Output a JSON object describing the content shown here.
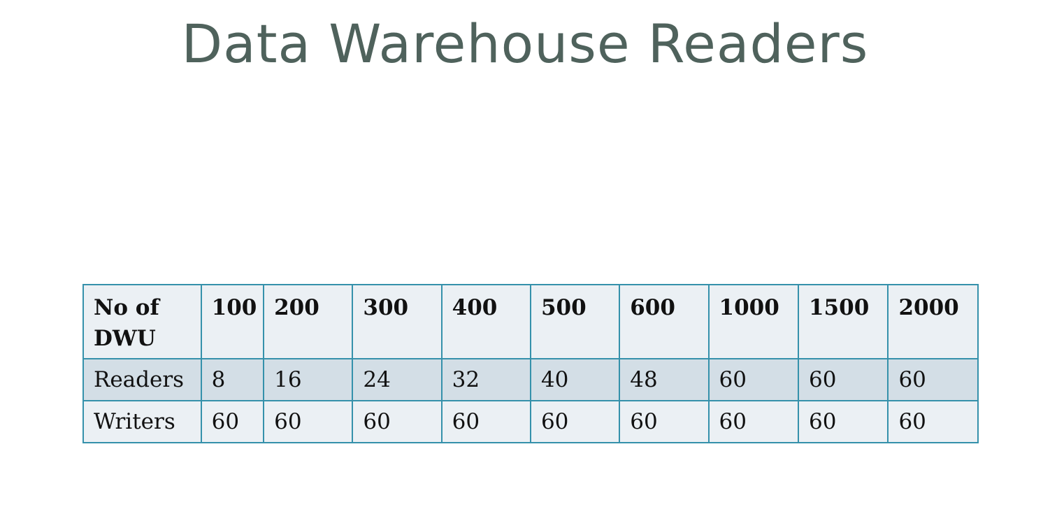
{
  "slide": {
    "title": "Data Warehouse Readers"
  },
  "table": {
    "header": [
      "No of DWU",
      "100",
      "200",
      "300",
      "400",
      "500",
      "600",
      "1000",
      "1500",
      "2000"
    ],
    "rows": [
      {
        "label": "Readers",
        "values": [
          "8",
          "16",
          "24",
          "32",
          "40",
          "48",
          "60",
          "60",
          "60"
        ]
      },
      {
        "label": "Writers",
        "values": [
          "60",
          "60",
          "60",
          "60",
          "60",
          "60",
          "60",
          "60",
          "60"
        ]
      }
    ]
  },
  "colors": {
    "title": "#4f625c",
    "border": "#3591ab",
    "row_light": "#ebf0f4",
    "row_dark": "#d3dee6"
  }
}
